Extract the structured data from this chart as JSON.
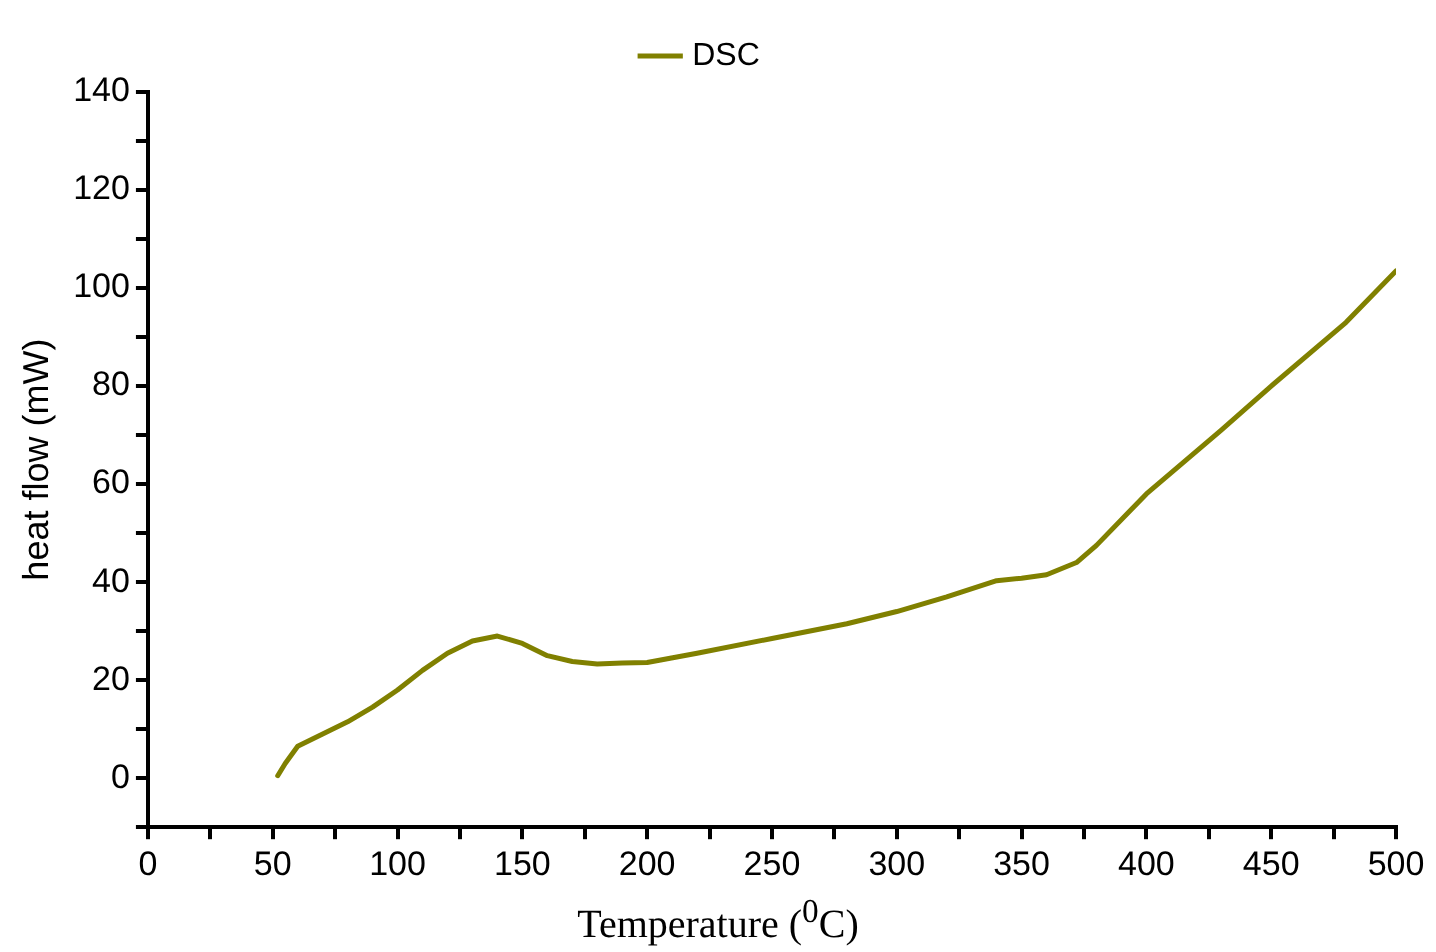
{
  "chart_data": {
    "type": "line",
    "xlabel": "Temperature ($^{0}$C)",
    "ylabel": "heat flow (mW)",
    "xlim": [
      0,
      500
    ],
    "xticks": [
      0,
      {
        "value": 25,
        "label": null
      },
      50,
      {
        "value": 75,
        "label": null
      },
      100,
      {
        "value": 125,
        "label": null
      },
      150,
      {
        "value": 175,
        "label": null
      },
      200,
      {
        "value": 225,
        "label": null
      },
      250,
      {
        "value": 275,
        "label": null
      },
      300,
      {
        "value": 325,
        "label": null
      },
      350,
      {
        "value": 375,
        "label": null
      },
      400,
      {
        "value": 425,
        "label": null
      },
      450,
      {
        "value": 475,
        "label": null
      },
      500
    ],
    "ylim": [
      -10,
      140
    ],
    "yticks": [
      {
        "value": -10,
        "label": null
      },
      0,
      {
        "value": 10,
        "label": null
      },
      20,
      {
        "value": 30,
        "label": null
      },
      40,
      {
        "value": 50,
        "label": null
      },
      60,
      {
        "value": 70,
        "label": null
      },
      80,
      {
        "value": 90,
        "label": null
      },
      100,
      {
        "value": 110,
        "label": null
      },
      120,
      {
        "value": 130,
        "label": null
      },
      140
    ],
    "grid": false,
    "legend": "top",
    "marker": "none",
    "line_style": "solid",
    "series": [
      {
        "name": "DSC",
        "color": "#808000",
        "x": [
          52,
          55,
          60,
          70,
          80,
          90,
          100,
          110,
          120,
          130,
          140,
          150,
          160,
          170,
          180,
          190,
          200,
          220,
          250,
          280,
          300,
          320,
          340,
          350,
          360,
          372,
          380,
          400,
          430,
          450,
          480,
          500
        ],
        "values": [
          0.5,
          3,
          6.5,
          9,
          11.5,
          14.5,
          18,
          22,
          25.5,
          28,
          29,
          27.5,
          25,
          23.8,
          23.3,
          23.5,
          23.6,
          25.5,
          28.5,
          31.5,
          34,
          37,
          40.3,
          40.8,
          41.5,
          44,
          47.5,
          58,
          71,
          80,
          93,
          103.5
        ]
      }
    ]
  }
}
